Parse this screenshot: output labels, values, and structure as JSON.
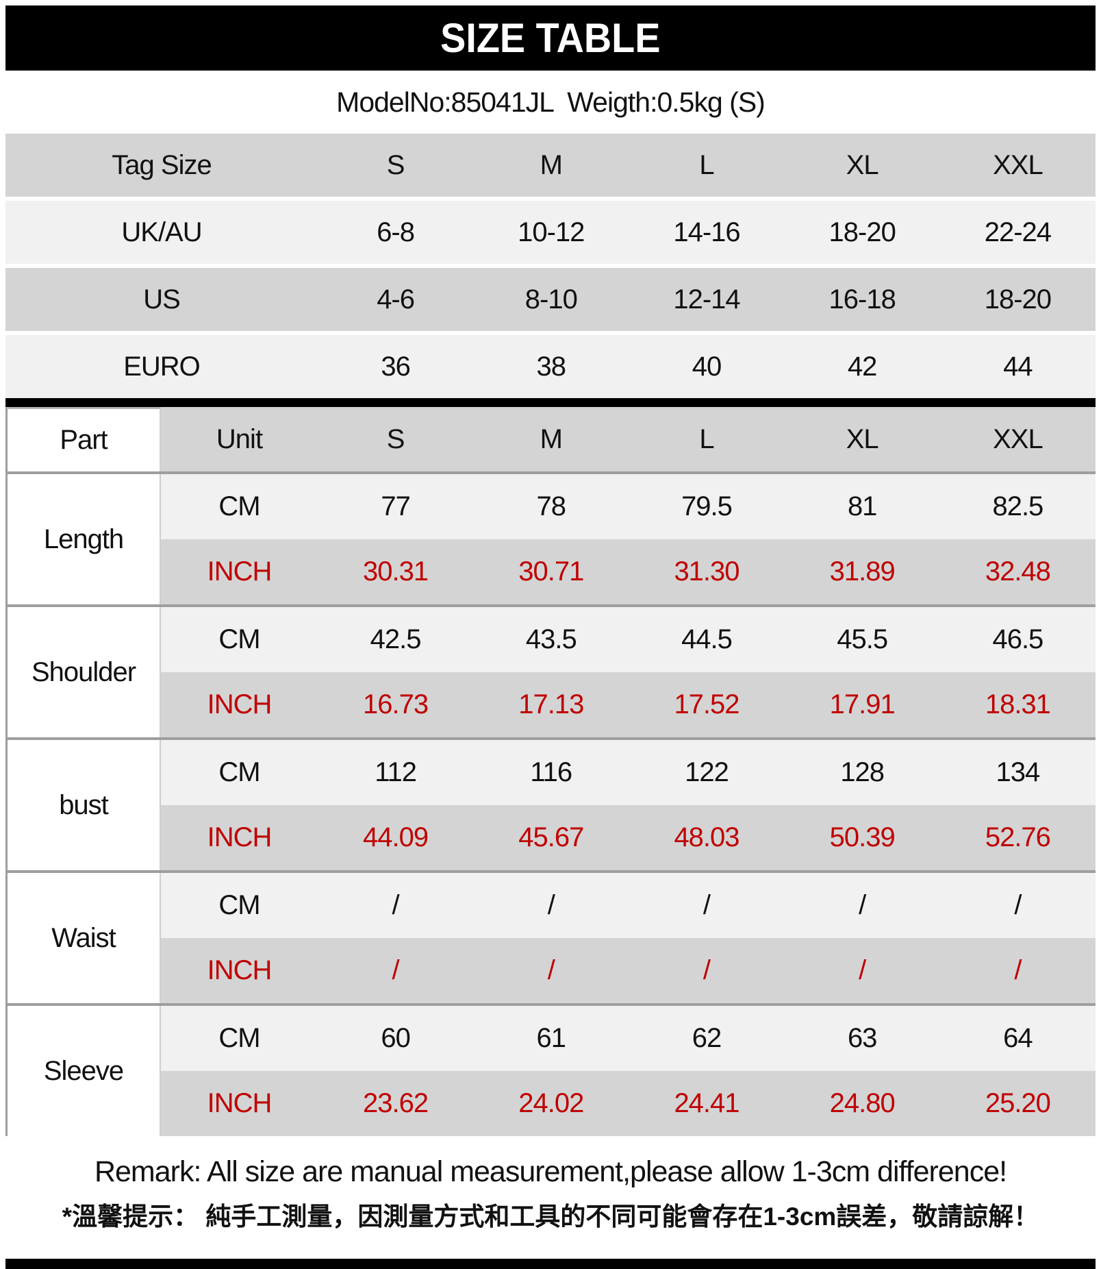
{
  "page": {
    "title": "SIZE TABLE",
    "subtitle": "ModelNo:85041JL  Weigth:0.5kg (S)",
    "remark_en": "Remark: All size are manual measurement,please allow 1-3cm difference!",
    "remark_zh": "*溫馨提示：  純手工測量，因測量方式和工具的不同可能會存在1-3cm誤差，敬請諒解！"
  },
  "colors": {
    "bar_black": "#000000",
    "row_gray": "#d4d4d4",
    "row_light": "#f1f1f1",
    "inch_red": "#c00000",
    "divider_gray": "#9e9e9e"
  },
  "size_conversion": {
    "rows": [
      {
        "label": "Tag Size",
        "values": [
          "S",
          "M",
          "L",
          "XL",
          "XXL"
        ]
      },
      {
        "label": "UK/AU",
        "values": [
          "6-8",
          "10-12",
          "14-16",
          "18-20",
          "22-24"
        ]
      },
      {
        "label": "US",
        "values": [
          "4-6",
          "8-10",
          "12-14",
          "16-18",
          "18-20"
        ]
      },
      {
        "label": "EURO",
        "values": [
          "36",
          "38",
          "40",
          "42",
          "44"
        ]
      }
    ]
  },
  "measurements": {
    "header": {
      "part": "Part",
      "unit": "Unit",
      "sizes": [
        "S",
        "M",
        "L",
        "XL",
        "XXL"
      ]
    },
    "units": {
      "cm": "CM",
      "inch": "INCH"
    },
    "groups": [
      {
        "part": "Length",
        "cm": [
          "77",
          "78",
          "79.5",
          "81",
          "82.5"
        ],
        "inch": [
          "30.31",
          "30.71",
          "31.30",
          "31.89",
          "32.48"
        ]
      },
      {
        "part": "Shoulder",
        "cm": [
          "42.5",
          "43.5",
          "44.5",
          "45.5",
          "46.5"
        ],
        "inch": [
          "16.73",
          "17.13",
          "17.52",
          "17.91",
          "18.31"
        ]
      },
      {
        "part": "bust",
        "cm": [
          "112",
          "116",
          "122",
          "128",
          "134"
        ],
        "inch": [
          "44.09",
          "45.67",
          "48.03",
          "50.39",
          "52.76"
        ]
      },
      {
        "part": "Waist",
        "cm": [
          "/",
          "/",
          "/",
          "/",
          "/"
        ],
        "inch": [
          "/",
          "/",
          "/",
          "/",
          "/"
        ]
      },
      {
        "part": "Sleeve",
        "cm": [
          "60",
          "61",
          "62",
          "63",
          "64"
        ],
        "inch": [
          "23.62",
          "24.02",
          "24.41",
          "24.80",
          "25.20"
        ]
      }
    ]
  }
}
